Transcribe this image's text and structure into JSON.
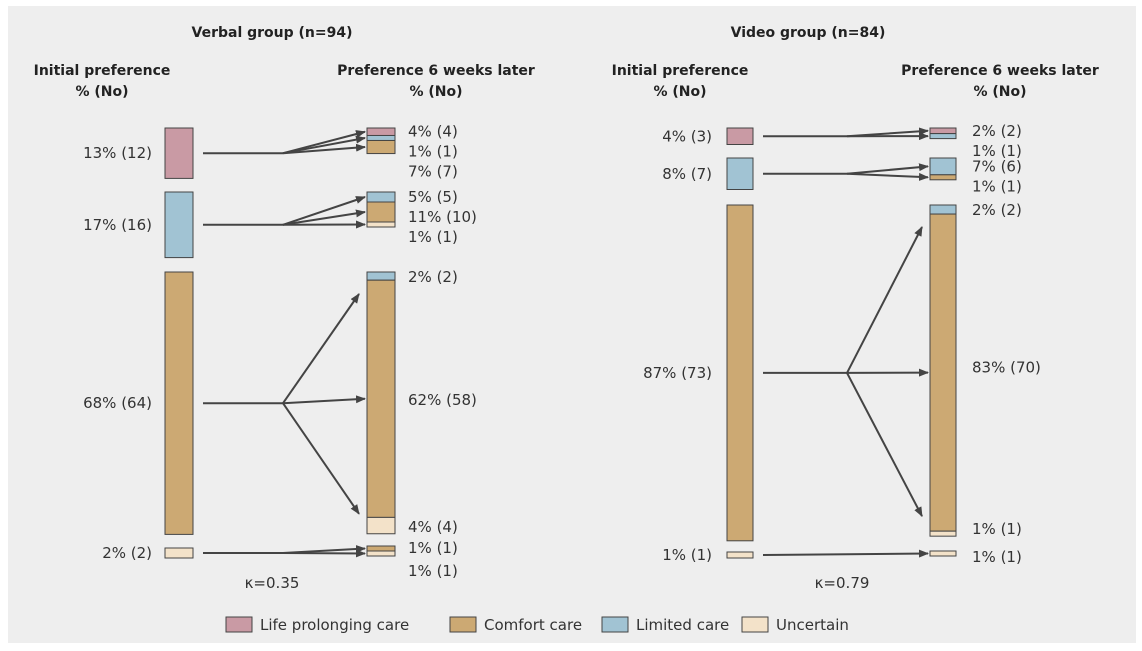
{
  "colors": {
    "life_prolonging": "#c99aa4",
    "comfort": "#cca973",
    "limited": "#a1c3d3",
    "uncertain": "#f3e2c9",
    "arrow": "#444444",
    "bar_border": "#444444"
  },
  "chart_data": {
    "type": "flow",
    "legend_position": "bottom",
    "categories": [
      "Life prolonging care",
      "Comfort care",
      "Limited care",
      "Uncertain"
    ],
    "panels": [
      {
        "id": "verbal",
        "title": "Verbal group (n=94)",
        "col_initial_title": [
          "Initial preference",
          "% (No)"
        ],
        "col_later_title": [
          "Preference 6 weeks later",
          "% (No)"
        ],
        "kappa_label": "κ=0.35",
        "initial": [
          {
            "category": "Life prolonging care",
            "count": 12,
            "label": "13% (12)"
          },
          {
            "category": "Limited care",
            "count": 16,
            "label": "17% (16)"
          },
          {
            "category": "Comfort care",
            "count": 64,
            "label": "68% (64)"
          },
          {
            "category": "Uncertain",
            "count": 2,
            "label": "2% (2)"
          }
        ],
        "later": [
          {
            "from": "Life prolonging care",
            "segments": [
              {
                "category": "Life prolonging care",
                "count": 4,
                "label": "4% (4)"
              },
              {
                "category": "Limited care",
                "count": 1,
                "label": "1% (1)"
              },
              {
                "category": "Comfort care",
                "count": 7,
                "label": "7% (7)"
              }
            ]
          },
          {
            "from": "Limited care",
            "segments": [
              {
                "category": "Limited care",
                "count": 5,
                "label": "5% (5)"
              },
              {
                "category": "Comfort care",
                "count": 10,
                "label": "11% (10)"
              },
              {
                "category": "Uncertain",
                "count": 1,
                "label": "1% (1)"
              }
            ]
          },
          {
            "from": "Comfort care",
            "segments": [
              {
                "category": "Limited care",
                "count": 2,
                "label": "2% (2)"
              },
              {
                "category": "Comfort care",
                "count": 58,
                "label": "62% (58)"
              },
              {
                "category": "Uncertain",
                "count": 4,
                "label": "4% (4)"
              }
            ]
          },
          {
            "from": "Uncertain",
            "segments": [
              {
                "category": "Comfort care",
                "count": 1,
                "label": "1% (1)"
              },
              {
                "category": "Uncertain",
                "count": 1,
                "label": "1% (1)"
              }
            ]
          }
        ]
      },
      {
        "id": "video",
        "title": "Video group (n=84)",
        "col_initial_title": [
          "Initial preference",
          "% (No)"
        ],
        "col_later_title": [
          "Preference 6 weeks later",
          "% (No)"
        ],
        "kappa_label": "κ=0.79",
        "initial": [
          {
            "category": "Life prolonging care",
            "count": 3,
            "label": "4% (3)"
          },
          {
            "category": "Limited care",
            "count": 7,
            "label": "8% (7)"
          },
          {
            "category": "Comfort care",
            "count": 73,
            "label": "87% (73)"
          },
          {
            "category": "Uncertain",
            "count": 1,
            "label": "1% (1)"
          }
        ],
        "later": [
          {
            "from": "Life prolonging care",
            "segments": [
              {
                "category": "Life prolonging care",
                "count": 2,
                "label": "2% (2)"
              },
              {
                "category": "Limited care",
                "count": 1,
                "label": "1% (1)"
              }
            ]
          },
          {
            "from": "Limited care",
            "segments": [
              {
                "category": "Limited care",
                "count": 6,
                "label": "7% (6)"
              },
              {
                "category": "Comfort care",
                "count": 1,
                "label": "1% (1)"
              }
            ]
          },
          {
            "from": "Comfort care",
            "segments": [
              {
                "category": "Limited care",
                "count": 2,
                "label": "2% (2)"
              },
              {
                "category": "Comfort care",
                "count": 70,
                "label": "83% (70)"
              },
              {
                "category": "Uncertain",
                "count": 1,
                "label": "1% (1)"
              }
            ]
          },
          {
            "from": "Uncertain",
            "segments": [
              {
                "category": "Uncertain",
                "count": 1,
                "label": "1% (1)"
              }
            ]
          }
        ]
      }
    ]
  }
}
